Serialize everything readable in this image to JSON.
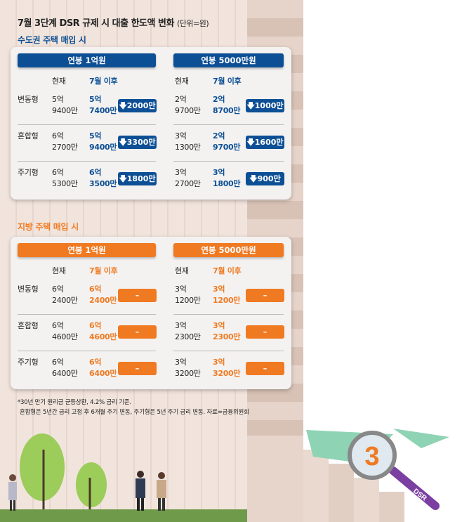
{
  "title": "7월 3단계 DSR 규제 시 대출 한도액 변화",
  "unit": "(단위=원)",
  "colors": {
    "blue": "#0d4f95",
    "orange": "#f07a22"
  },
  "sections": [
    {
      "label": "수도권 주택 매입 시",
      "groups": [
        {
          "header": "연봉 1억원",
          "col_now": "현재",
          "col_after": "7월 이후",
          "rows": [
            {
              "type": "변동형",
              "now": [
                "5억",
                "9400만"
              ],
              "after": [
                "5억",
                "7400만"
              ],
              "change": "2000만",
              "arrow": "down-arrow-icon"
            },
            {
              "type": "혼합형",
              "now": [
                "6억",
                "2700만"
              ],
              "after": [
                "5억",
                "9400만"
              ],
              "change": "3300만",
              "arrow": "down-arrow-icon"
            },
            {
              "type": "주기형",
              "now": [
                "6억",
                "5300만"
              ],
              "after": [
                "6억",
                "3500만"
              ],
              "change": "1800만",
              "arrow": "down-arrow-icon"
            }
          ]
        },
        {
          "header": "연봉 5000만원",
          "col_now": "현재",
          "col_after": "7월 이후",
          "rows": [
            {
              "now": [
                "2억",
                "9700만"
              ],
              "after": [
                "2억",
                "8700만"
              ],
              "change": "1000만",
              "arrow": "down-arrow-icon"
            },
            {
              "now": [
                "3억",
                "1300만"
              ],
              "after": [
                "2억",
                "9700만"
              ],
              "change": "1600만",
              "arrow": "down-arrow-icon"
            },
            {
              "now": [
                "3억",
                "2700만"
              ],
              "after": [
                "3억",
                "1800만"
              ],
              "change": "900만",
              "arrow": "down-arrow-icon"
            }
          ]
        }
      ]
    },
    {
      "label": "지방 주택 매입 시",
      "groups": [
        {
          "header": "연봉 1억원",
          "col_now": "현재",
          "col_after": "7월 이후",
          "rows": [
            {
              "type": "변동형",
              "now": [
                "6억",
                "2400만"
              ],
              "after": [
                "6억",
                "2400만"
              ],
              "change": "–"
            },
            {
              "type": "혼합형",
              "now": [
                "6억",
                "4600만"
              ],
              "after": [
                "6억",
                "4600만"
              ],
              "change": "–"
            },
            {
              "type": "주기형",
              "now": [
                "6억",
                "6400만"
              ],
              "after": [
                "6억",
                "6400만"
              ],
              "change": "–"
            }
          ]
        },
        {
          "header": "연봉 5000만원",
          "col_now": "현재",
          "col_after": "7월 이후",
          "rows": [
            {
              "now": [
                "3억",
                "1200만"
              ],
              "after": [
                "3억",
                "1200만"
              ],
              "change": "–"
            },
            {
              "now": [
                "3억",
                "2300만"
              ],
              "after": [
                "3억",
                "2300만"
              ],
              "change": "–"
            },
            {
              "now": [
                "3억",
                "3200만"
              ],
              "after": [
                "3억",
                "3200만"
              ],
              "change": "–"
            }
          ]
        }
      ]
    }
  ],
  "footnotes": [
    "*30년 만기 원리금 균등상환, 4.2% 금리 기준.",
    "혼합형은 5년간 금리 고정 후 6개월 주기 변동, 주기형은 5년 주기 금리 변동. 자료=금융위원회"
  ],
  "illustration": {
    "magnifier_number": "3",
    "magnifier_label": "DSR"
  }
}
